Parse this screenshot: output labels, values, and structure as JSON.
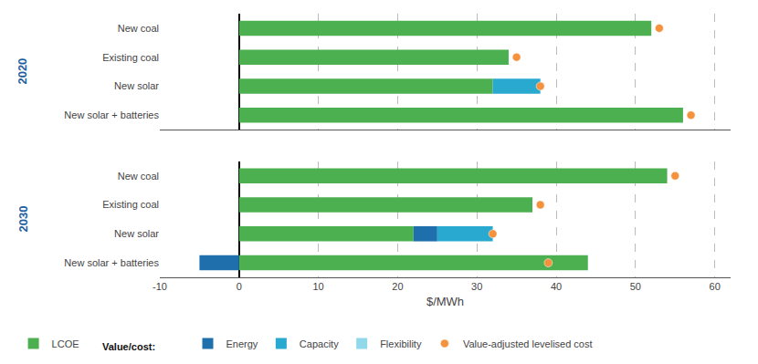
{
  "chart_data": [
    {
      "type": "bar",
      "orientation": "horizontal",
      "stacked": true,
      "title": "2020",
      "categories": [
        "New coal",
        "Existing coal",
        "New solar",
        "New solar + batteries"
      ],
      "series": [
        {
          "name": "LCOE",
          "color": "#4caf50",
          "values": [
            52,
            34,
            32,
            56
          ]
        },
        {
          "name": "Energy",
          "color": "#1f6fad",
          "values": [
            0,
            0,
            0,
            0
          ]
        },
        {
          "name": "Capacity",
          "color": "#29a8d0",
          "values": [
            0,
            0,
            6,
            0
          ]
        },
        {
          "name": "Flexibility",
          "color": "#90d8ea",
          "values": [
            0,
            0,
            0,
            0
          ]
        },
        {
          "name": "Value-adjusted levelised cost",
          "type": "scatter",
          "marker": "circle",
          "color": "#f5923e",
          "values": [
            53,
            35,
            38,
            57
          ]
        }
      ],
      "xlim": [
        -10,
        62
      ],
      "xticks": [
        -10,
        0,
        10,
        20,
        30,
        40,
        50,
        60
      ],
      "grid": true,
      "tick_labels": "y"
    },
    {
      "type": "bar",
      "orientation": "horizontal",
      "stacked": true,
      "title": "2030",
      "categories": [
        "New coal",
        "Existing coal",
        "New solar",
        "New solar + batteries"
      ],
      "series": [
        {
          "name": "LCOE",
          "color": "#4caf50",
          "values": [
            54,
            37,
            22,
            44
          ]
        },
        {
          "name": "Energy",
          "color": "#1f6fad",
          "values": [
            0,
            0,
            3,
            -5
          ]
        },
        {
          "name": "Capacity",
          "color": "#29a8d0",
          "values": [
            0,
            0,
            7,
            0
          ]
        },
        {
          "name": "Flexibility",
          "color": "#90d8ea",
          "values": [
            0,
            0,
            0,
            0
          ]
        },
        {
          "name": "Value-adjusted levelised cost",
          "type": "scatter",
          "marker": "circle",
          "color": "#f5923e",
          "values": [
            55,
            38,
            32,
            39
          ]
        }
      ],
      "xlim": [
        -10,
        62
      ],
      "xticks": [
        -10,
        0,
        10,
        20,
        30,
        40,
        50,
        60
      ],
      "grid": true,
      "xlabel": "$/MWh",
      "annotations": [
        "Value/cost:"
      ],
      "legend": "bottom"
    }
  ]
}
